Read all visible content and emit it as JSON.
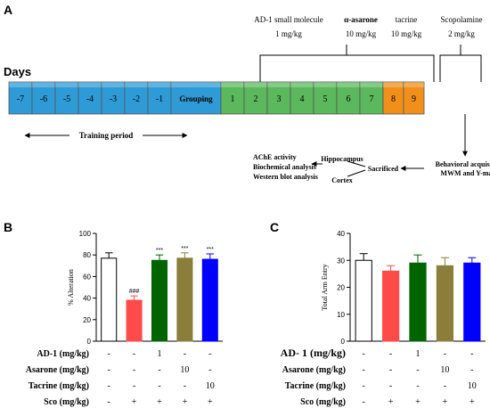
{
  "panel_labels": {
    "a": "A",
    "b": "B",
    "c": "C"
  },
  "timeline": {
    "days_label": "Days",
    "days": [
      {
        "label": "-7",
        "color": "#2e9bd6"
      },
      {
        "label": "-6",
        "color": "#2e9bd6"
      },
      {
        "label": "-5",
        "color": "#2e9bd6"
      },
      {
        "label": "-4",
        "color": "#2e9bd6"
      },
      {
        "label": "-3",
        "color": "#2e9bd6"
      },
      {
        "label": "-2",
        "color": "#2e9bd6"
      },
      {
        "label": "-1",
        "color": "#2e9bd6"
      },
      {
        "label": "Grouping",
        "color": "#2e9bd6"
      },
      {
        "label": "1",
        "color": "#5cb85c"
      },
      {
        "label": "2",
        "color": "#5cb85c"
      },
      {
        "label": "3",
        "color": "#5cb85c"
      },
      {
        "label": "4",
        "color": "#5cb85c"
      },
      {
        "label": "5",
        "color": "#5cb85c"
      },
      {
        "label": "6",
        "color": "#5cb85c"
      },
      {
        "label": "7",
        "color": "#5cb85c"
      },
      {
        "label": "8",
        "color": "#f0901a"
      },
      {
        "label": "9",
        "color": "#f0901a"
      }
    ],
    "treatments": [
      {
        "name": "AD-1 small molecule",
        "dose": "1 mg/kg",
        "bold": false
      },
      {
        "name": "α-asarone",
        "dose": "10 mg/kg",
        "bold": true
      },
      {
        "name": "tacrine",
        "dose": "10 mg/kg",
        "bold": false
      }
    ],
    "scopolamine": {
      "name": "Scopolamine",
      "dose": "2 mg/kg"
    },
    "training_period": "Training period",
    "behavior": {
      "line1": "Behavioral acquisition",
      "line2": "MWM and Y-maze"
    },
    "sacrificed": "Sacrificed",
    "hippocampus": "Hippocampus",
    "cortex": "Cortex",
    "analyses": [
      "AChE activity",
      "Biochemical analysis",
      "Western blot analysis"
    ]
  },
  "chart_data": [
    {
      "type": "bar",
      "panel": "B",
      "ylabel": "% Alteration",
      "ylim": [
        0,
        100
      ],
      "yticks": [
        0,
        20,
        40,
        60,
        80,
        100
      ],
      "values": [
        77,
        38,
        75,
        77,
        76
      ],
      "errors": [
        5,
        4,
        5,
        5,
        5
      ],
      "colors": [
        "#ffffff",
        "#ff4a4a",
        "#006400",
        "#8b7d3a",
        "#0000ff"
      ],
      "annotations": [
        "",
        "###",
        "***",
        "***",
        "***"
      ]
    },
    {
      "type": "bar",
      "panel": "C",
      "ylabel": "Total Arm Entry",
      "ylim": [
        0,
        40
      ],
      "yticks": [
        0,
        10,
        20,
        30,
        40
      ],
      "values": [
        30,
        26,
        29,
        28,
        29
      ],
      "errors": [
        2.5,
        2,
        3,
        3,
        2
      ],
      "colors": [
        "#ffffff",
        "#ff4a4a",
        "#006400",
        "#8b7d3a",
        "#0000ff"
      ],
      "annotations": [
        "",
        "",
        "",
        "",
        ""
      ]
    }
  ],
  "treatment_table": {
    "rows": [
      {
        "label": "AD-1 (mg/kg)",
        "label_c": "AD- 1 (mg/kg)",
        "values": [
          "-",
          "-",
          "1",
          "-",
          "-"
        ]
      },
      {
        "label": "Asarone (mg/kg)",
        "label_c": "Asarone (mg/kg)",
        "values": [
          "-",
          "-",
          "-",
          "10",
          "-"
        ]
      },
      {
        "label": "Tacrine (mg/kg)",
        "label_c": "Tacrine (mg/kg)",
        "values": [
          "-",
          "-",
          "-",
          "-",
          "10"
        ]
      },
      {
        "label": "Sco (mg/kg)",
        "label_c": "Sco (mg/kg)",
        "values": [
          "-",
          "+",
          "+",
          "+",
          "+"
        ]
      }
    ]
  }
}
